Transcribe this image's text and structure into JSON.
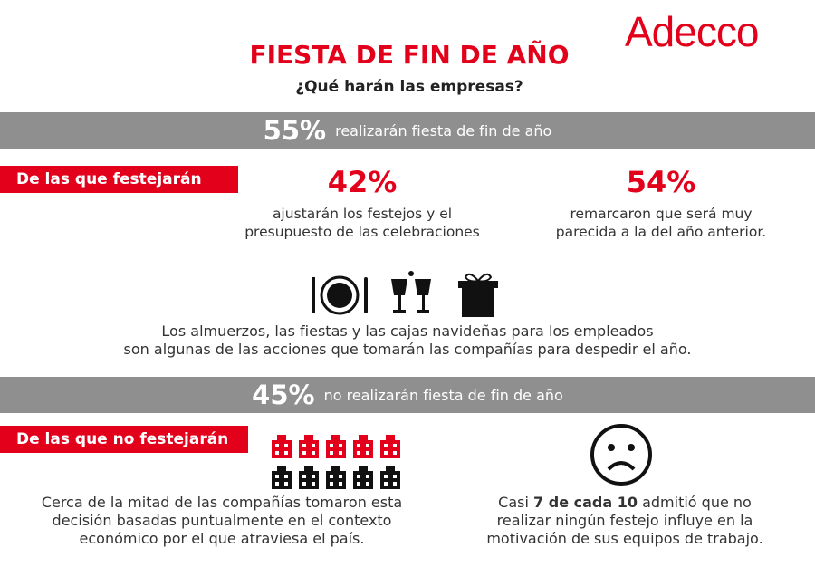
{
  "logo": "Adecco",
  "header": {
    "title": "FIESTA DE FIN DE AÑO",
    "subtitle": "¿Qué harán las empresas?"
  },
  "section_yes": {
    "percent": "55%",
    "text": "realizarán fiesta de fin de año",
    "tag": "De las que festejarán",
    "stats": [
      {
        "value": "42%",
        "lines": [
          "ajustarán los festejos y el",
          "presupuesto de las celebraciones"
        ]
      },
      {
        "value": "54%",
        "lines": [
          "remarcaron que será muy",
          "parecida a la del año anterior."
        ]
      }
    ],
    "note_lines": [
      "Los almuerzos, las fiestas y las cajas navideñas para los empleados",
      "son algunas de las acciones que tomarán las compañías para despedir el año."
    ]
  },
  "section_no": {
    "percent": "45%",
    "text": "no realizarán fiesta de fin de año",
    "tag": "De las que no festejarán",
    "note_left": [
      "Cerca de la mitad de las compañías tomaron esta",
      "decisión basadas puntualmente en el contexto",
      "económico por el que atraviesa el país."
    ],
    "note_right": {
      "first_line": {
        "before": "Casi",
        "bold": "7 de cada 10",
        "after": "admitió que no"
      },
      "lines": [
        "realizar ningún festejo influye en la",
        "motivación de sus equipos de trabajo."
      ]
    }
  }
}
